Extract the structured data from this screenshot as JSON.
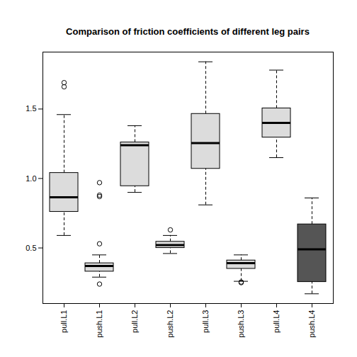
{
  "chart_data": {
    "type": "box",
    "title": "Comparison of friction coefficients of different leg pairs",
    "categories": [
      "pull.L1",
      "push.L1",
      "pull.L2",
      "push.L2",
      "pull.L3",
      "push.L3",
      "pull.L4",
      "push.L4"
    ],
    "boxes": [
      {
        "whisker_low": 0.59,
        "q1": 0.76,
        "median": 0.865,
        "q3": 1.04,
        "whisker_high": 1.46,
        "outliers": [
          1.66,
          1.69
        ]
      },
      {
        "whisker_low": 0.29,
        "q1": 0.33,
        "median": 0.37,
        "q3": 0.39,
        "whisker_high": 0.45,
        "outliers": [
          0.24,
          0.53,
          0.87,
          0.88,
          0.97
        ]
      },
      {
        "whisker_low": 0.9,
        "q1": 0.945,
        "median": 1.24,
        "q3": 1.26,
        "whisker_high": 1.38,
        "outliers": []
      },
      {
        "whisker_low": 0.46,
        "q1": 0.5,
        "median": 0.52,
        "q3": 0.545,
        "whisker_high": 0.59,
        "outliers": [
          0.63
        ]
      },
      {
        "whisker_low": 0.81,
        "q1": 1.07,
        "median": 1.255,
        "q3": 1.465,
        "whisker_high": 1.84,
        "outliers": []
      },
      {
        "whisker_low": 0.26,
        "q1": 0.35,
        "median": 0.39,
        "q3": 0.41,
        "whisker_high": 0.45,
        "outliers": [
          0.25,
          0.255
        ]
      },
      {
        "whisker_low": 1.15,
        "q1": 1.295,
        "median": 1.4,
        "q3": 1.505,
        "whisker_high": 1.78,
        "outliers": []
      },
      {
        "whisker_low": 0.17,
        "q1": 0.255,
        "median": 0.49,
        "q3": 0.67,
        "whisker_high": 0.86,
        "outliers": []
      }
    ],
    "colors": [
      "#dcdcdc",
      "#dcdcdc",
      "#dcdcdc",
      "#dcdcdc",
      "#dcdcdc",
      "#dcdcdc",
      "#dcdcdc",
      "#555555"
    ],
    "ylim": [
      0.1,
      1.91
    ],
    "yticks": [
      0.5,
      {
        "value": 1,
        "label": "1.0"
      },
      1.5
    ],
    "grid": false
  }
}
